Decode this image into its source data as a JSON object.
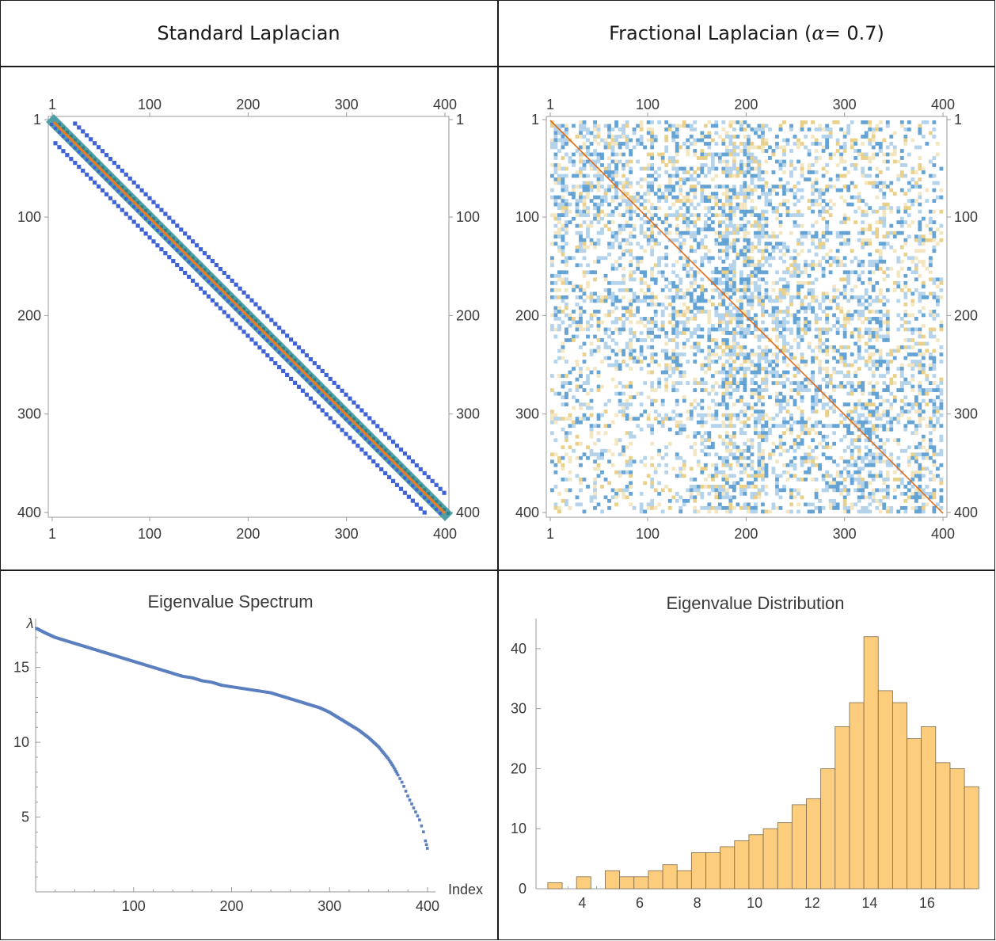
{
  "headers": {
    "left": "Standard Laplacian",
    "right_prefix": "Fractional Laplacian (",
    "right_symbol": "α",
    "right_suffix": " = 0.7)"
  },
  "colors": {
    "band_outer": "#3f63d6",
    "band_inner": "#4f9fa6",
    "band_diag": "#ee7a22",
    "frac_blue": "#5aa0d2",
    "frac_yellow": "#ead494",
    "frac_diag": "#e06a1a",
    "scatter": "#5b7fbf",
    "hist_fill": "#fdcd7e",
    "hist_stroke": "#7a6a4a",
    "axis": "#9a9a9a",
    "grid_line": "#1a1a1a"
  },
  "chart_data": [
    {
      "type": "heatmap",
      "title": "Standard Laplacian",
      "rows": 400,
      "cols": 400,
      "ticks": [
        1,
        100,
        200,
        300,
        400
      ],
      "tick_labels": [
        "1",
        "100",
        "200",
        "300",
        "400"
      ],
      "structure": "banded: main diagonal, offsets ±1, ±20",
      "band_offsets": [
        -20,
        -1,
        0,
        1,
        20
      ]
    },
    {
      "type": "heatmap",
      "title": "Fractional Laplacian (α = 0.7)",
      "rows": 400,
      "cols": 400,
      "ticks": [
        1,
        100,
        200,
        300,
        400
      ],
      "tick_labels": [
        "1",
        "100",
        "200",
        "300",
        "400"
      ],
      "structure": "dense matrix with strong diagonal"
    },
    {
      "type": "scatter",
      "title": "Eigenvalue Spectrum",
      "xlabel": "Index",
      "ylabel": "λ",
      "xlim": [
        0,
        400
      ],
      "ylim": [
        0,
        18
      ],
      "xticks": [
        100,
        200,
        300,
        400
      ],
      "yticks": [
        5,
        10,
        15
      ],
      "points_x": [
        1,
        10,
        20,
        30,
        40,
        50,
        60,
        70,
        80,
        90,
        100,
        110,
        120,
        130,
        140,
        150,
        160,
        170,
        180,
        190,
        200,
        210,
        220,
        230,
        240,
        250,
        260,
        270,
        280,
        290,
        300,
        310,
        320,
        330,
        340,
        350,
        360,
        365,
        370,
        375,
        380,
        383,
        386,
        389,
        392,
        394,
        396,
        398,
        400
      ],
      "points_y": [
        17.6,
        17.3,
        17.0,
        16.8,
        16.6,
        16.4,
        16.2,
        16.0,
        15.8,
        15.6,
        15.4,
        15.2,
        15.0,
        14.8,
        14.6,
        14.4,
        14.3,
        14.1,
        14.0,
        13.8,
        13.7,
        13.6,
        13.5,
        13.4,
        13.3,
        13.1,
        12.9,
        12.7,
        12.5,
        12.3,
        12.0,
        11.6,
        11.2,
        10.8,
        10.3,
        9.7,
        8.9,
        8.4,
        7.8,
        7.2,
        6.4,
        6.0,
        5.6,
        5.2,
        4.8,
        4.4,
        4.0,
        3.4,
        2.9
      ]
    },
    {
      "type": "bar",
      "title": "Eigenvalue Distribution",
      "xlim": [
        2.5,
        17.6
      ],
      "ylim": [
        0,
        45
      ],
      "xticks": [
        4,
        6,
        8,
        10,
        12,
        14,
        16
      ],
      "yticks": [
        0,
        10,
        20,
        30,
        40
      ],
      "bin_width": 0.5,
      "bin_starts": [
        2.8,
        3.8,
        4.8,
        5.3,
        5.8,
        6.3,
        6.8,
        7.3,
        7.8,
        8.3,
        8.8,
        9.3,
        9.8,
        10.3,
        10.8,
        11.3,
        11.8,
        12.3,
        12.8,
        13.3,
        13.8,
        14.3,
        14.8,
        15.3,
        15.8,
        16.3,
        16.8,
        17.3
      ],
      "values": [
        1,
        2,
        3,
        2,
        2,
        3,
        4,
        3,
        6,
        6,
        7,
        8,
        9,
        10,
        11,
        14,
        15,
        20,
        27,
        31,
        42,
        33,
        31,
        25,
        27,
        21,
        20,
        17
      ]
    }
  ]
}
